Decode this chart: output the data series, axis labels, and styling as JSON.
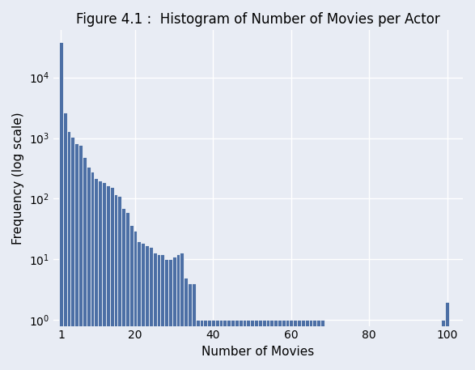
{
  "title": "Figure 4.1 :  Histogram of Number of Movies per Actor",
  "xlabel": "Number of Movies",
  "ylabel": "Frequency (log scale)",
  "bar_color": "#4c6fa5",
  "background_color": "#e8ecf4",
  "bar_positions": [
    1,
    2,
    3,
    4,
    5,
    6,
    7,
    8,
    9,
    10,
    11,
    12,
    13,
    14,
    15,
    16,
    17,
    18,
    19,
    20,
    21,
    22,
    23,
    24,
    25,
    26,
    27,
    28,
    29,
    30,
    31,
    32,
    33,
    34,
    35,
    36,
    37,
    38,
    39,
    40,
    41,
    42,
    43,
    44,
    45,
    46,
    47,
    48,
    49,
    50,
    51,
    52,
    53,
    54,
    55,
    56,
    57,
    58,
    59,
    60,
    61,
    62,
    63,
    64,
    65,
    66,
    67,
    68,
    99,
    100
  ],
  "heights": [
    38000,
    2600,
    1300,
    1050,
    830,
    760,
    480,
    340,
    280,
    220,
    200,
    190,
    165,
    155,
    120,
    110,
    70,
    60,
    37,
    30,
    20,
    19,
    17,
    16,
    13,
    12,
    12,
    10,
    10,
    11,
    12,
    13,
    5,
    4,
    4,
    1,
    1,
    1,
    1,
    1,
    1,
    1,
    1,
    1,
    1,
    1,
    1,
    1,
    1,
    1,
    1,
    1,
    1,
    1,
    1,
    1,
    1,
    1,
    1,
    1,
    1,
    1,
    1,
    1,
    1,
    1,
    1,
    1,
    1,
    2
  ],
  "xlim": [
    -1,
    104
  ],
  "ylim": [
    0.8,
    60000
  ],
  "xticks": [
    1,
    20,
    40,
    60,
    80,
    100
  ],
  "yticks": [
    1,
    10,
    100,
    1000,
    10000
  ],
  "title_fontsize": 12,
  "axis_fontsize": 11
}
